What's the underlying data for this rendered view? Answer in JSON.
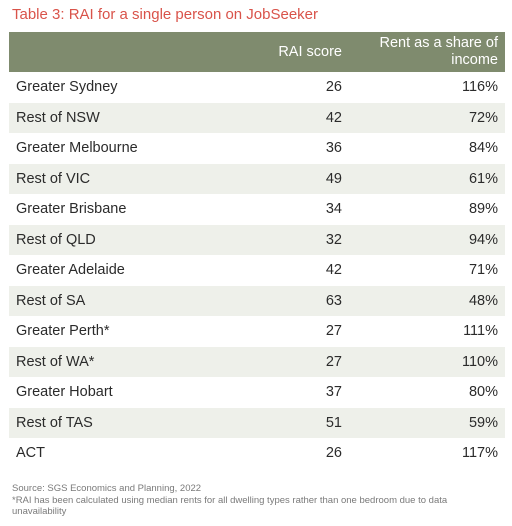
{
  "title": "Table 3: RAI for a single person on JobSeeker",
  "table": {
    "headers": [
      "",
      "RAI score",
      "Rent as a share of income"
    ],
    "rows": [
      {
        "region": "Greater Sydney",
        "rai": "26",
        "share": "116%"
      },
      {
        "region": "Rest of NSW",
        "rai": "42",
        "share": "72%"
      },
      {
        "region": "Greater Melbourne",
        "rai": "36",
        "share": "84%"
      },
      {
        "region": "Rest of VIC",
        "rai": "49",
        "share": "61%"
      },
      {
        "region": "Greater Brisbane",
        "rai": "34",
        "share": "89%"
      },
      {
        "region": "Rest of QLD",
        "rai": "32",
        "share": "94%"
      },
      {
        "region": "Greater Adelaide",
        "rai": "42",
        "share": "71%"
      },
      {
        "region": "Rest of SA",
        "rai": "63",
        "share": "48%"
      },
      {
        "region": "Greater Perth*",
        "rai": "27",
        "share": "111%"
      },
      {
        "region": "Rest of WA*",
        "rai": "27",
        "share": "110%"
      },
      {
        "region": "Greater Hobart",
        "rai": "37",
        "share": "80%"
      },
      {
        "region": "Rest of TAS",
        "rai": "51",
        "share": "59%"
      },
      {
        "region": "ACT",
        "rai": "26",
        "share": "117%"
      }
    ]
  },
  "footnotes": {
    "source": "Source: SGS Economics and Planning, 2022",
    "note": "*RAI has been calculated using median rents for all dwelling types rather than one bedroom due to data unavailability"
  },
  "colors": {
    "title": "#d9534a",
    "header_bg": "#7f8b6e",
    "stripe_bg": "#eef0ea"
  }
}
